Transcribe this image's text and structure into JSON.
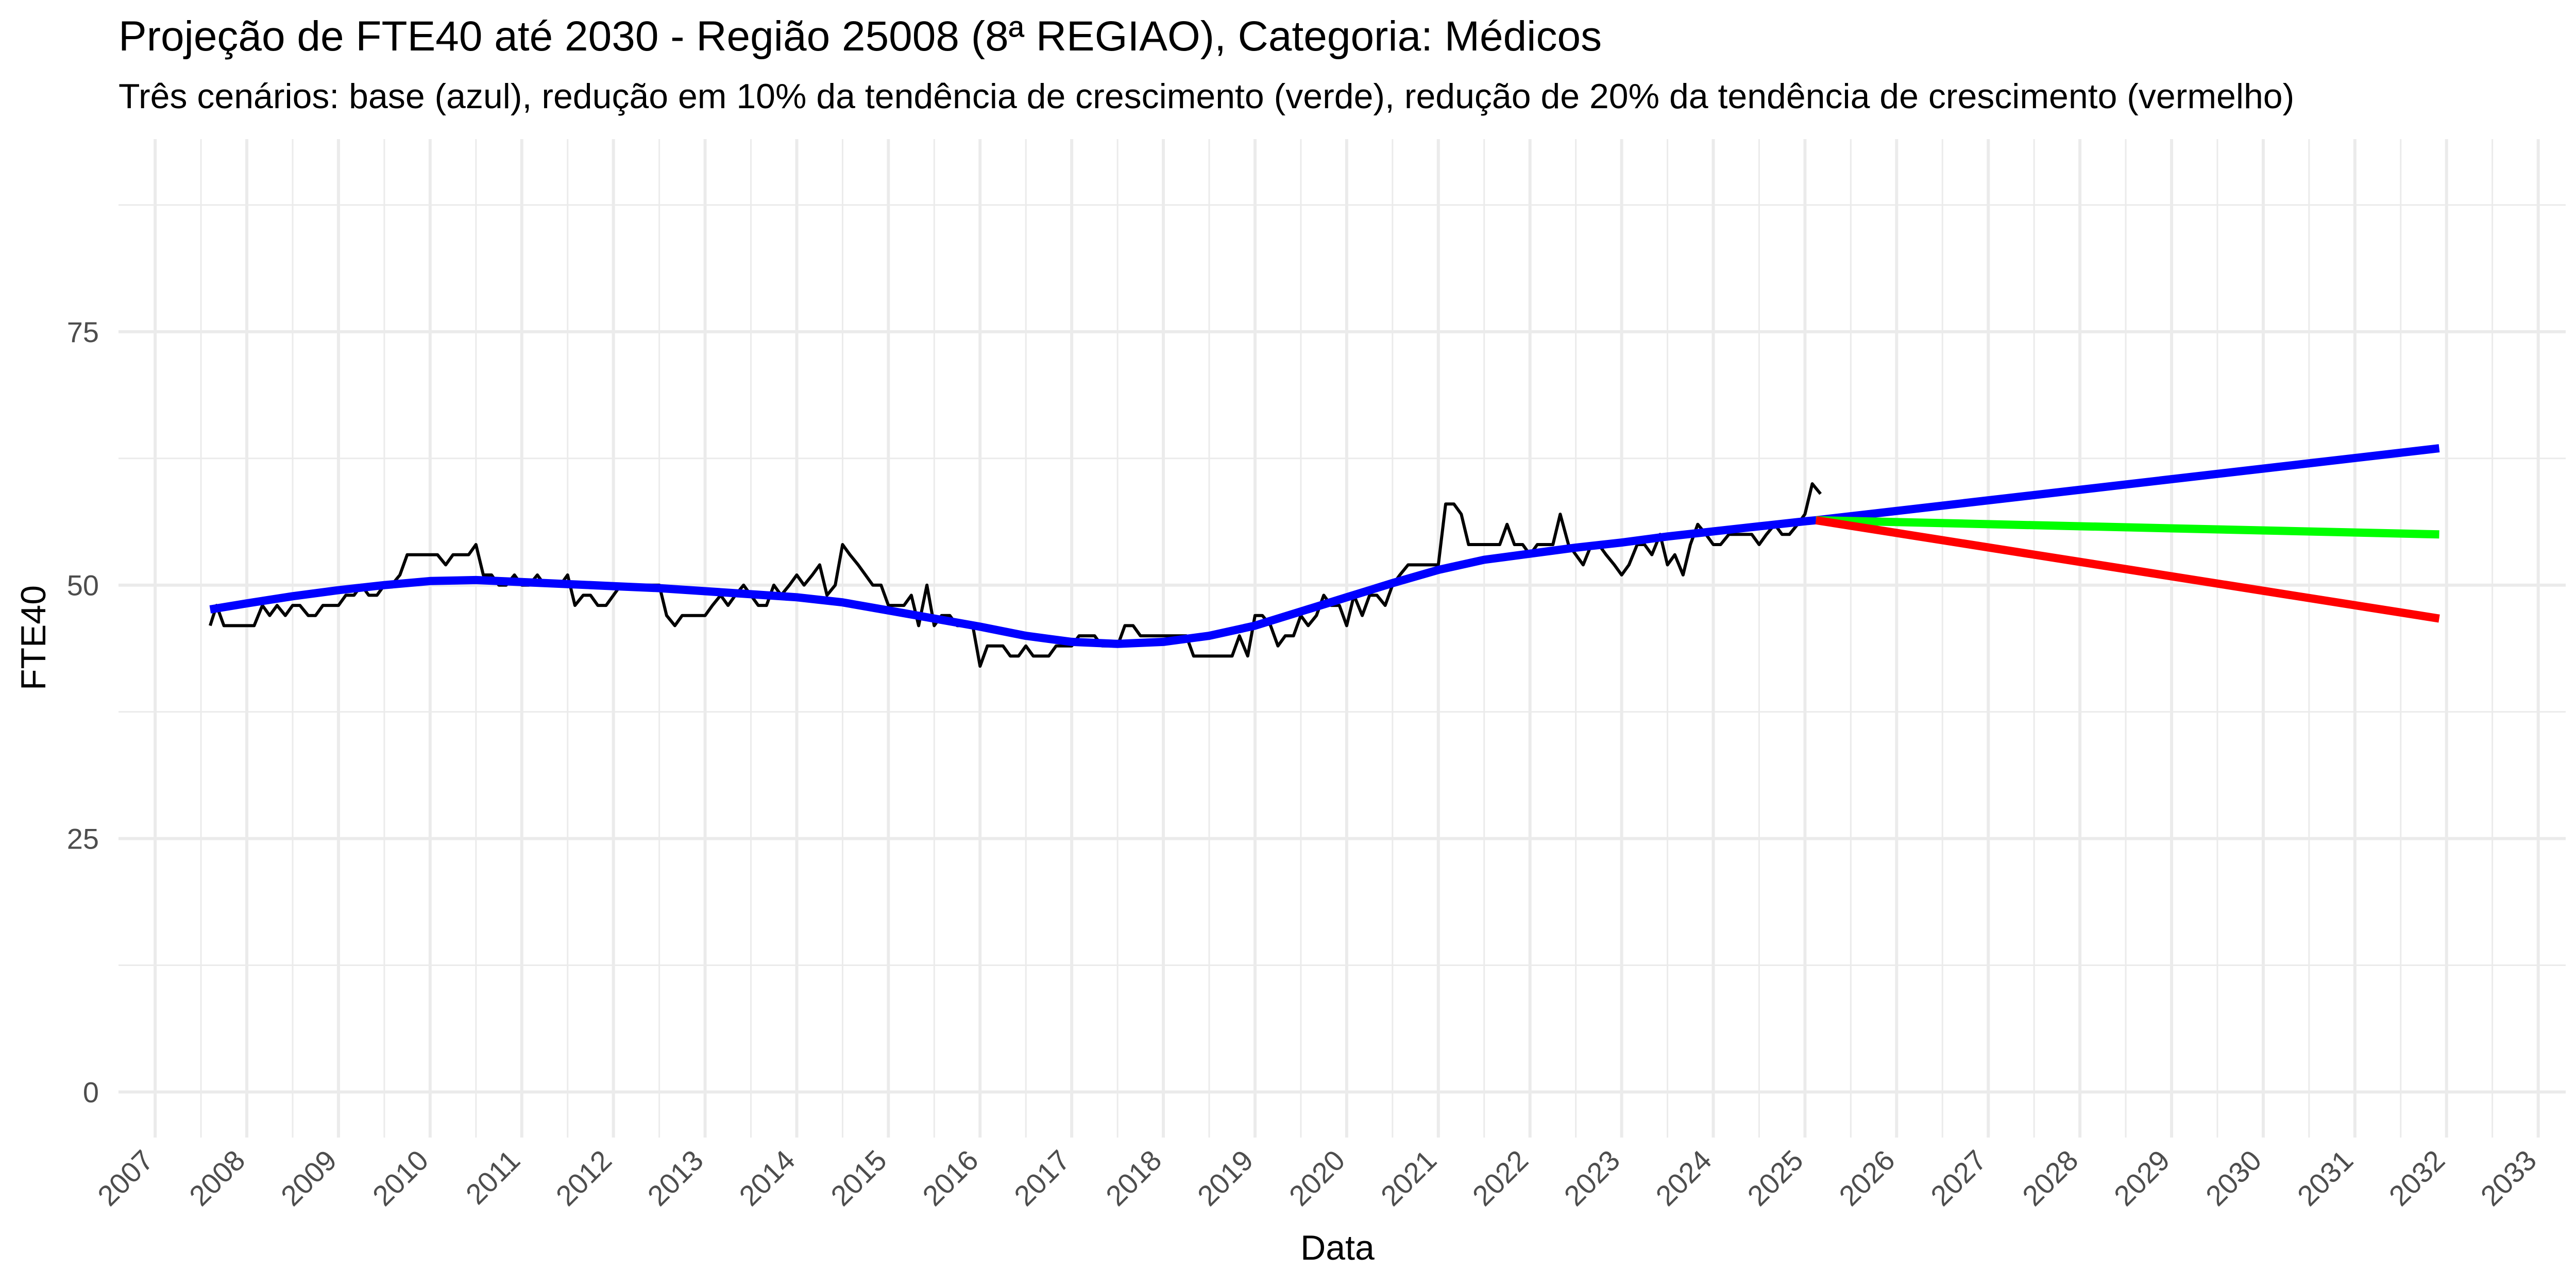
{
  "chart_data": {
    "type": "line",
    "title": "Projeção de FTE40 até 2030 - Região 25008 (8ª REGIAO), Categoria: Médicos",
    "subtitle": "Três cenários: base (azul), redução em 10% da tendência de crescimento (verde), redução de 20% da tendência de crescimento (vermelho)",
    "xlabel": "Data",
    "ylabel": "FTE40",
    "xlim": [
      2006.6,
      2033.3
    ],
    "ylim": [
      -4.5,
      94
    ],
    "x_ticks": [
      2007,
      2008,
      2009,
      2010,
      2011,
      2012,
      2013,
      2014,
      2015,
      2016,
      2017,
      2018,
      2019,
      2020,
      2021,
      2022,
      2023,
      2024,
      2025,
      2026,
      2027,
      2028,
      2029,
      2030,
      2031,
      2032,
      2033
    ],
    "x_tick_labels": [
      "2007",
      "2008",
      "2009",
      "2010",
      "2011",
      "2012",
      "2013",
      "2014",
      "2015",
      "2016",
      "2017",
      "2018",
      "2019",
      "2020",
      "2021",
      "2022",
      "2023",
      "2024",
      "2025",
      "2026",
      "2027",
      "2028",
      "2029",
      "2030",
      "2031",
      "2032",
      "2033"
    ],
    "y_ticks": [
      0,
      25,
      50,
      75
    ],
    "y_tick_labels": [
      "0",
      "25",
      "50",
      "75"
    ],
    "y_minor": [
      12.5,
      37.5,
      62.5,
      87.5
    ],
    "grid": true,
    "legend": "none",
    "colors": {
      "observed": "#000000",
      "base": "#0000FF",
      "green": "#00FF00",
      "red": "#FF0000",
      "grid": "#EBEBEB"
    },
    "series": [
      {
        "x": [
          2007.6,
          2007.67,
          2007.75,
          2007.83,
          2007.92,
          2008.0,
          2008.08,
          2008.17,
          2008.25,
          2008.33,
          2008.42,
          2008.5,
          2008.58,
          2008.67,
          2008.75,
          2008.83,
          2008.92,
          2009.0,
          2009.08,
          2009.17,
          2009.25,
          2009.33,
          2009.42,
          2009.5,
          2009.58,
          2009.67,
          2009.75,
          2009.83,
          2009.92,
          2010.0,
          2010.08,
          2010.17,
          2010.25,
          2010.33,
          2010.42,
          2010.5,
          2010.58,
          2010.67,
          2010.75,
          2010.83,
          2010.92,
          2011.0,
          2011.08,
          2011.17,
          2011.25,
          2011.33,
          2011.42,
          2011.5,
          2011.58,
          2011.67,
          2011.75,
          2011.83,
          2011.92,
          2012.0,
          2012.08,
          2012.17,
          2012.25,
          2012.33,
          2012.42,
          2012.5,
          2012.58,
          2012.67,
          2012.75,
          2012.83,
          2012.92,
          2013.0,
          2013.08,
          2013.17,
          2013.25,
          2013.33,
          2013.42,
          2013.5,
          2013.58,
          2013.67,
          2013.75,
          2013.83,
          2013.92,
          2014.0,
          2014.08,
          2014.17,
          2014.25,
          2014.33,
          2014.42,
          2014.5,
          2014.58,
          2014.67,
          2014.75,
          2014.83,
          2014.92,
          2015.0,
          2015.08,
          2015.17,
          2015.25,
          2015.33,
          2015.42,
          2015.5,
          2015.58,
          2015.67,
          2015.75,
          2015.83,
          2015.92,
          2016.0,
          2016.08,
          2016.17,
          2016.25,
          2016.33,
          2016.42,
          2016.5,
          2016.58,
          2016.67,
          2016.75,
          2016.83,
          2016.92,
          2017.0,
          2017.08,
          2017.17,
          2017.25,
          2017.33,
          2017.42,
          2017.5,
          2017.58,
          2017.67,
          2017.75,
          2017.83,
          2017.92,
          2018.0,
          2018.08,
          2018.17,
          2018.25,
          2018.33,
          2018.42,
          2018.5,
          2018.58,
          2018.67,
          2018.75,
          2018.83,
          2018.92,
          2019.0,
          2019.08,
          2019.17,
          2019.25,
          2019.33,
          2019.42,
          2019.5,
          2019.58,
          2019.67,
          2019.75,
          2019.83,
          2019.92,
          2020.0,
          2020.08,
          2020.17,
          2020.25,
          2020.33,
          2020.42,
          2020.5,
          2020.58,
          2020.67,
          2020.75,
          2020.83,
          2020.92,
          2021.0,
          2021.08,
          2021.17,
          2021.25,
          2021.33,
          2021.42,
          2021.5,
          2021.58,
          2021.67,
          2021.75,
          2021.83,
          2021.92,
          2022.0,
          2022.08,
          2022.17,
          2022.25,
          2022.33,
          2022.42,
          2022.5,
          2022.58,
          2022.67,
          2022.75,
          2022.83,
          2022.92,
          2023.0,
          2023.08,
          2023.17,
          2023.25,
          2023.33,
          2023.42,
          2023.5,
          2023.58,
          2023.67,
          2023.75,
          2023.83,
          2023.92,
          2024.0,
          2024.08,
          2024.17,
          2024.25,
          2024.33,
          2024.42,
          2024.5,
          2024.58,
          2024.67,
          2024.75,
          2024.83,
          2024.92,
          2025.0,
          2025.08,
          2025.17
        ],
        "values": [
          46,
          48,
          46,
          46,
          46,
          46,
          46,
          48,
          47,
          48,
          47,
          48,
          48,
          47,
          47,
          48,
          48,
          48,
          49,
          49,
          50,
          49,
          49,
          50,
          50,
          51,
          53,
          53,
          53,
          53,
          53,
          52,
          53,
          53,
          53,
          54,
          51,
          51,
          50,
          50,
          51,
          50,
          50,
          51,
          50,
          50,
          50,
          51,
          48,
          49,
          49,
          48,
          48,
          49,
          50,
          50,
          50,
          50,
          50,
          50,
          47,
          46,
          47,
          47,
          47,
          47,
          48,
          49,
          48,
          49,
          50,
          49,
          48,
          48,
          50,
          49,
          50,
          51,
          50,
          51,
          52,
          49,
          50,
          54,
          53,
          52,
          51,
          50,
          50,
          48,
          48,
          48,
          49,
          46,
          50,
          46,
          47,
          47,
          46,
          46,
          46,
          42,
          44,
          44,
          44,
          43,
          43,
          44,
          43,
          43,
          43,
          44,
          44,
          44,
          45,
          45,
          45,
          44,
          44,
          44,
          46,
          46,
          45,
          45,
          45,
          45,
          45,
          45,
          45,
          43,
          43,
          43,
          43,
          43,
          43,
          45,
          43,
          47,
          47,
          46,
          44,
          45,
          45,
          47,
          46,
          47,
          49,
          48,
          48,
          46,
          49,
          47,
          49,
          49,
          48,
          50,
          51,
          52,
          52,
          52,
          52,
          52,
          58,
          58,
          57,
          54,
          54,
          54,
          54,
          54,
          56,
          54,
          54,
          53,
          54,
          54,
          54,
          57,
          54,
          53,
          52,
          54,
          54,
          53,
          52,
          51,
          52,
          54,
          54,
          53,
          55,
          52,
          53,
          51,
          54,
          56,
          55,
          54,
          54,
          55,
          55,
          55,
          55,
          54,
          55,
          56,
          55,
          55,
          56,
          57,
          60,
          59
        ]
      },
      {
        "x": [
          2007.6,
          2008.0,
          2008.5,
          2009.0,
          2009.5,
          2010.0,
          2010.5,
          2011.0,
          2011.5,
          2012.0,
          2012.5,
          2013.0,
          2013.5,
          2014.0,
          2014.5,
          2015.0,
          2015.5,
          2016.0,
          2016.5,
          2017.0,
          2017.5,
          2018.0,
          2018.5,
          2019.0,
          2019.5,
          2020.0,
          2020.5,
          2021.0,
          2021.5,
          2022.0,
          2022.5,
          2023.0,
          2023.5,
          2024.0,
          2024.5,
          2025.0,
          2025.12
        ],
        "values": [
          47.6,
          48.2,
          48.9,
          49.5,
          50.0,
          50.4,
          50.5,
          50.3,
          50.1,
          49.9,
          49.7,
          49.4,
          49.1,
          48.8,
          48.3,
          47.5,
          46.7,
          45.9,
          45.0,
          44.4,
          44.2,
          44.4,
          45.0,
          46.0,
          47.4,
          48.8,
          50.2,
          51.5,
          52.5,
          53.1,
          53.7,
          54.2,
          54.8,
          55.3,
          55.8,
          56.3,
          56.4
        ]
      },
      {
        "x": [
          2025.12,
          2031.92
        ],
        "values": [
          56.4,
          63.5
        ]
      },
      {
        "x": [
          2025.12,
          2031.92
        ],
        "values": [
          56.4,
          55.0
        ]
      },
      {
        "x": [
          2025.12,
          2031.92
        ],
        "values": [
          56.4,
          46.7
        ]
      }
    ]
  }
}
